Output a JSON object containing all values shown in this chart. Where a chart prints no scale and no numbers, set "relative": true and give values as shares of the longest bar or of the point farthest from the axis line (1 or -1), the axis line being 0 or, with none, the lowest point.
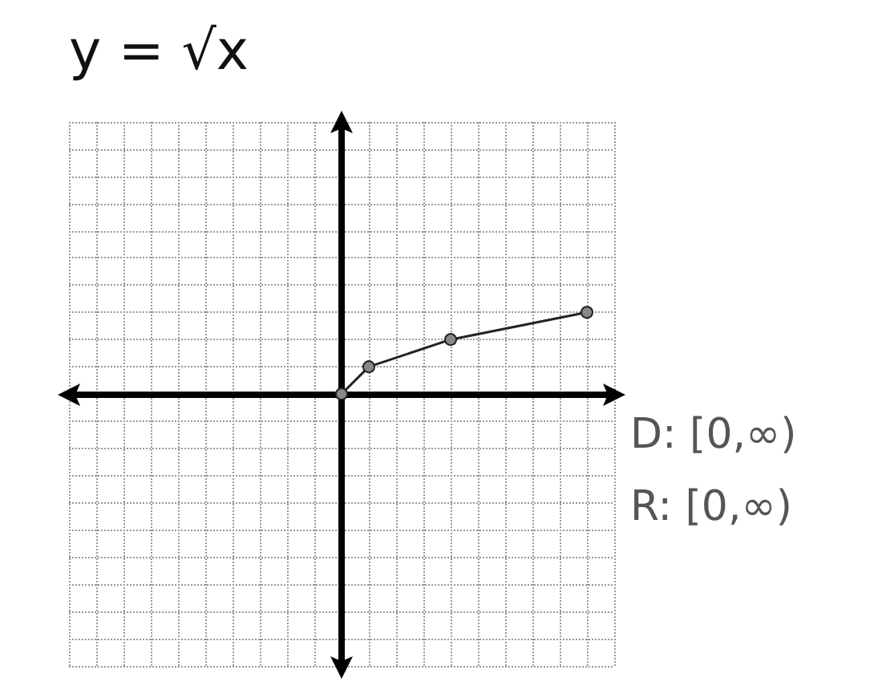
{
  "chart_data": {
    "type": "line",
    "title": "y = √x",
    "relative": true,
    "categories": [
      null,
      null,
      null,
      null,
      null,
      null,
      null,
      null,
      null,
      null,
      null,
      null,
      null,
      null,
      null,
      null,
      null,
      null,
      null,
      null,
      null
    ],
    "series": [
      {
        "color": "#222222",
        "values": [
          null,
          null,
          null,
          null,
          null,
          null,
          null,
          null,
          null,
          null,
          0,
          0.333,
          null,
          null,
          0.667,
          null,
          null,
          null,
          null,
          1,
          null
        ]
      }
    ],
    "marker": "circle",
    "grid": true,
    "annotations": [
      "D: [0,∞)",
      "R: [0,∞)"
    ]
  }
}
